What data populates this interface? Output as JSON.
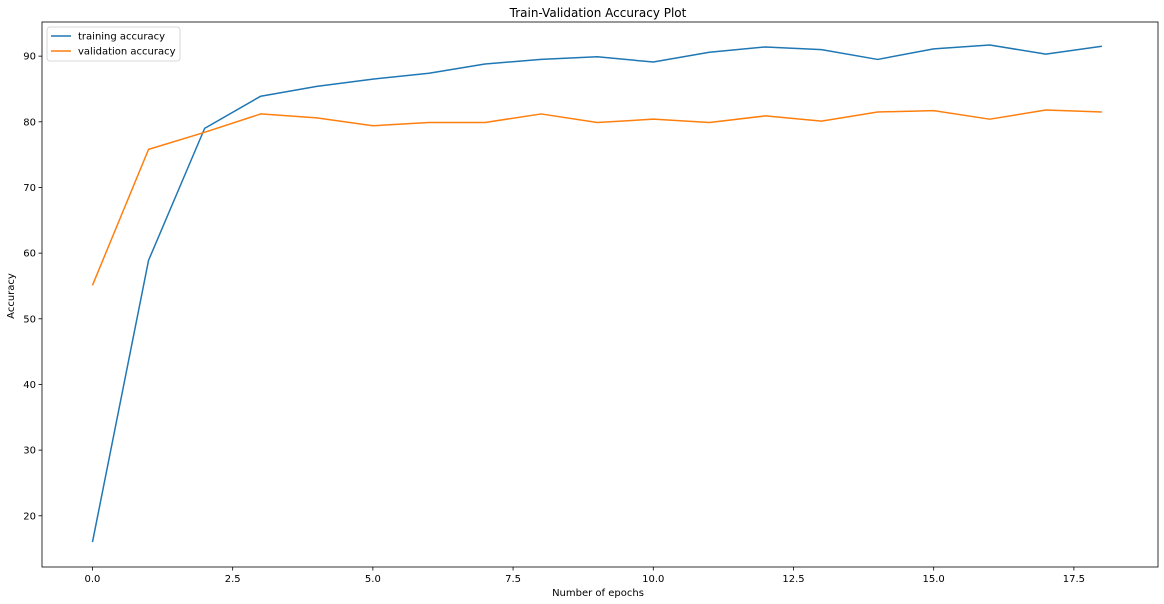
{
  "chart_data": {
    "type": "line",
    "title": "Train-Validation Accuracy Plot",
    "xlabel": "Number of epochs",
    "ylabel": "Accuracy",
    "xlim": [
      -0.9,
      19.0
    ],
    "ylim": [
      12.2,
      95.2
    ],
    "x_ticks": [
      0.0,
      2.5,
      5.0,
      7.5,
      10.0,
      12.5,
      15.0,
      17.5
    ],
    "x_tick_labels": [
      "0.0",
      "2.5",
      "5.0",
      "7.5",
      "10.0",
      "12.5",
      "15.0",
      "17.5"
    ],
    "y_ticks": [
      20,
      30,
      40,
      50,
      60,
      70,
      80,
      90
    ],
    "y_tick_labels": [
      "20",
      "30",
      "40",
      "50",
      "60",
      "70",
      "80",
      "90"
    ],
    "grid": false,
    "legend_position": "top-left",
    "x": [
      0,
      1,
      2,
      3,
      4,
      5,
      6,
      7,
      8,
      9,
      10,
      11,
      12,
      13,
      14,
      15,
      16,
      17,
      18
    ],
    "series": [
      {
        "name": "training accuracy",
        "color": "#1f77b4",
        "values": [
          16.0,
          58.9,
          79.0,
          83.9,
          85.4,
          86.5,
          87.4,
          88.8,
          89.5,
          89.9,
          89.1,
          90.6,
          91.4,
          91.0,
          89.5,
          91.1,
          91.7,
          90.3,
          91.5
        ]
      },
      {
        "name": "validation accuracy",
        "color": "#ff7f0e",
        "values": [
          55.1,
          75.8,
          78.4,
          81.2,
          80.6,
          79.4,
          79.9,
          79.9,
          81.2,
          79.9,
          80.4,
          79.9,
          80.9,
          80.1,
          81.5,
          81.7,
          80.4,
          81.8,
          81.5
        ]
      }
    ]
  }
}
